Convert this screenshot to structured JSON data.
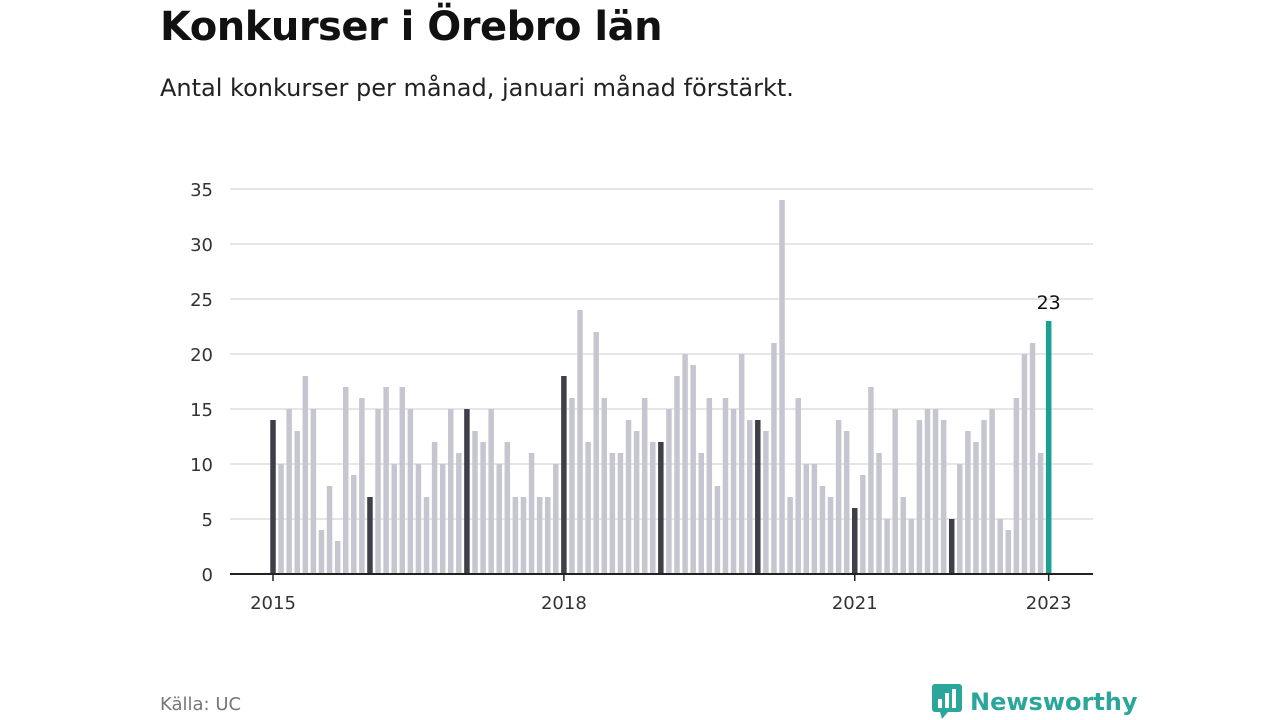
{
  "header": {
    "title": "Konkurser i Örebro län",
    "subtitle": "Antal konkurser per månad, januari månad förstärkt."
  },
  "footer": {
    "source": "Källa: UC",
    "brand": "Newsworthy",
    "brand_icon": "bar-chart-logo-icon"
  },
  "colors": {
    "regular": "#c6c6d0",
    "january": "#3f3f4a",
    "latest": "#1aa191",
    "grid": "#dddde2",
    "axis": "#222222",
    "brand": "#2aa69a"
  },
  "chart_data": {
    "type": "bar",
    "title": "Konkurser i Örebro län",
    "subtitle": "Antal konkurser per månad, januari månad förstärkt.",
    "xlabel": "",
    "ylabel": "",
    "ylim": [
      0,
      35
    ],
    "yticks": [
      0,
      5,
      10,
      15,
      20,
      25,
      30,
      35
    ],
    "xticks": [
      {
        "label": "2015",
        "month": "2015-01"
      },
      {
        "label": "2018",
        "month": "2018-01"
      },
      {
        "label": "2021",
        "month": "2021-01"
      },
      {
        "label": "2023",
        "month": "2023-01"
      }
    ],
    "grid": true,
    "legend": "none",
    "highlight": {
      "january": "darker bars",
      "latest": "teal bar with value label"
    },
    "annotations": [
      {
        "month": "2023-01",
        "text": "23"
      }
    ],
    "months": [
      "2015-01",
      "2015-02",
      "2015-03",
      "2015-04",
      "2015-05",
      "2015-06",
      "2015-07",
      "2015-08",
      "2015-09",
      "2015-10",
      "2015-11",
      "2015-12",
      "2016-01",
      "2016-02",
      "2016-03",
      "2016-04",
      "2016-05",
      "2016-06",
      "2016-07",
      "2016-08",
      "2016-09",
      "2016-10",
      "2016-11",
      "2016-12",
      "2017-01",
      "2017-02",
      "2017-03",
      "2017-04",
      "2017-05",
      "2017-06",
      "2017-07",
      "2017-08",
      "2017-09",
      "2017-10",
      "2017-11",
      "2017-12",
      "2018-01",
      "2018-02",
      "2018-03",
      "2018-04",
      "2018-05",
      "2018-06",
      "2018-07",
      "2018-08",
      "2018-09",
      "2018-10",
      "2018-11",
      "2018-12",
      "2019-01",
      "2019-02",
      "2019-03",
      "2019-04",
      "2019-05",
      "2019-06",
      "2019-07",
      "2019-08",
      "2019-09",
      "2019-10",
      "2019-11",
      "2019-12",
      "2020-01",
      "2020-02",
      "2020-03",
      "2020-04",
      "2020-05",
      "2020-06",
      "2020-07",
      "2020-08",
      "2020-09",
      "2020-10",
      "2020-11",
      "2020-12",
      "2021-01",
      "2021-02",
      "2021-03",
      "2021-04",
      "2021-05",
      "2021-06",
      "2021-07",
      "2021-08",
      "2021-09",
      "2021-10",
      "2021-11",
      "2021-12",
      "2022-01",
      "2022-02",
      "2022-03",
      "2022-04",
      "2022-05",
      "2022-06",
      "2022-07",
      "2022-08",
      "2022-09",
      "2022-10",
      "2022-11",
      "2022-12",
      "2023-01"
    ],
    "values": [
      14,
      10,
      15,
      13,
      18,
      15,
      4,
      8,
      3,
      17,
      9,
      16,
      7,
      15,
      17,
      10,
      17,
      15,
      10,
      7,
      12,
      10,
      15,
      11,
      15,
      13,
      12,
      15,
      10,
      12,
      7,
      7,
      11,
      7,
      7,
      10,
      18,
      16,
      24,
      12,
      22,
      16,
      11,
      11,
      14,
      13,
      16,
      12,
      12,
      15,
      18,
      20,
      19,
      11,
      16,
      8,
      16,
      15,
      20,
      14,
      14,
      13,
      21,
      34,
      7,
      16,
      10,
      10,
      8,
      7,
      14,
      13,
      6,
      9,
      17,
      11,
      5,
      15,
      7,
      5,
      14,
      15,
      15,
      14,
      5,
      10,
      13,
      12,
      14,
      15,
      5,
      4,
      16,
      20,
      21,
      11,
      23
    ]
  }
}
